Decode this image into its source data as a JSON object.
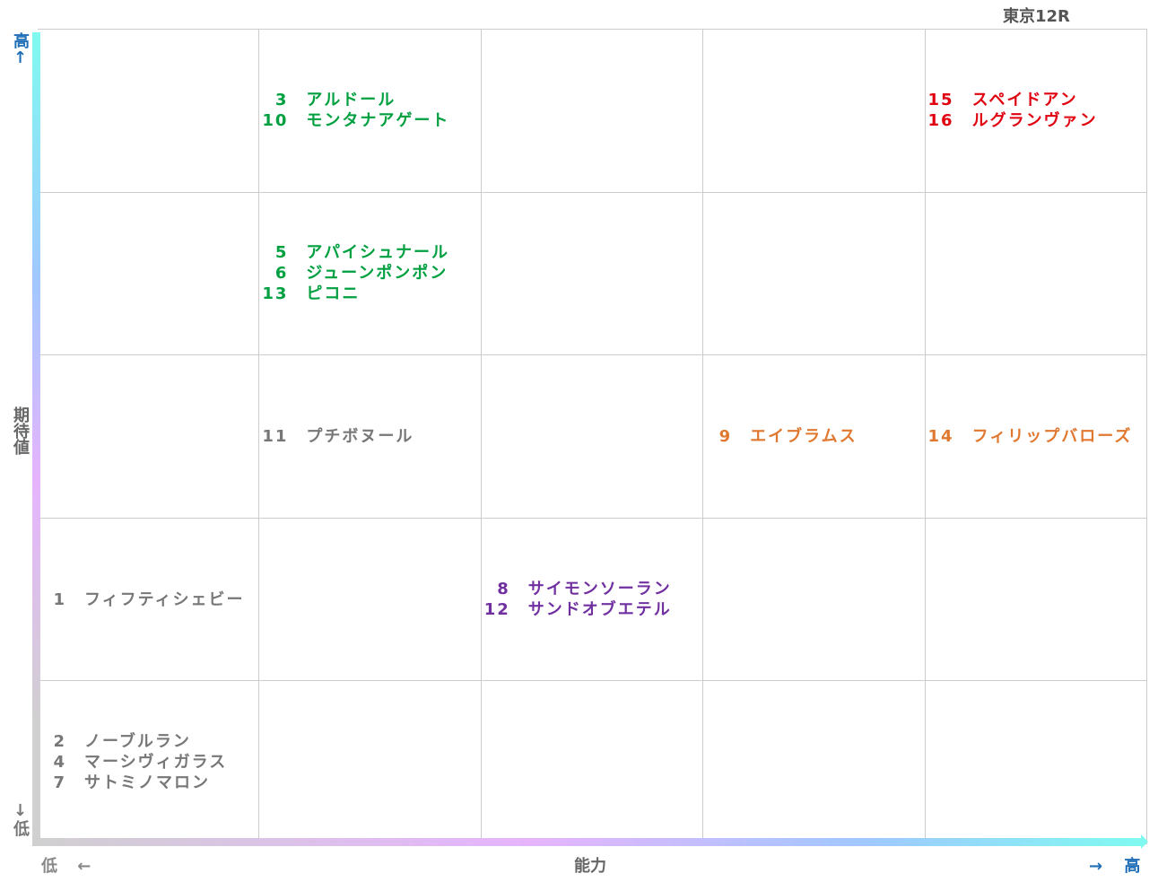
{
  "title": "東京12R",
  "y_axis": {
    "label": "期待値",
    "high": "高↑",
    "low": "↓低"
  },
  "x_axis": {
    "label": "能力",
    "low": "低 ←",
    "high": "→ 高"
  },
  "grid": {
    "rows": [
      [
        null,
        {
          "color": "#00a040",
          "entries": [
            {
              "number": 3,
              "name": "アルドール"
            },
            {
              "number": 10,
              "name": "モンタナアゲート"
            }
          ]
        },
        null,
        null,
        {
          "color": "#e00010",
          "entries": [
            {
              "number": 15,
              "name": "スペイドアン"
            },
            {
              "number": 16,
              "name": "ルグランヴァン"
            }
          ]
        }
      ],
      [
        null,
        {
          "color": "#00a040",
          "entries": [
            {
              "number": 5,
              "name": "アパイシュナール"
            },
            {
              "number": 6,
              "name": "ジューンポンポン"
            },
            {
              "number": 13,
              "name": "ピコニ"
            }
          ]
        },
        null,
        null,
        null
      ],
      [
        null,
        {
          "color": "#777777",
          "entries": [
            {
              "number": 11,
              "name": "プチボヌール"
            }
          ]
        },
        null,
        {
          "color": "#e07830",
          "entries": [
            {
              "number": 9,
              "name": "エイブラムス"
            }
          ]
        },
        {
          "color": "#e07830",
          "entries": [
            {
              "number": 14,
              "name": "フィリップバローズ"
            }
          ]
        }
      ],
      [
        {
          "color": "#777777",
          "entries": [
            {
              "number": 1,
              "name": "フィフティシェビー"
            }
          ]
        },
        null,
        {
          "color": "#7030a0",
          "entries": [
            {
              "number": 8,
              "name": "サイモンソーラン"
            },
            {
              "number": 12,
              "name": "サンドオブエテル"
            }
          ]
        },
        null,
        null
      ],
      [
        {
          "color": "#777777",
          "entries": [
            {
              "number": 2,
              "name": "ノーブルラン"
            },
            {
              "number": 4,
              "name": "マーシヴィガラス"
            },
            {
              "number": 7,
              "name": "サトミノマロン"
            }
          ]
        },
        null,
        null,
        null,
        null
      ]
    ]
  }
}
